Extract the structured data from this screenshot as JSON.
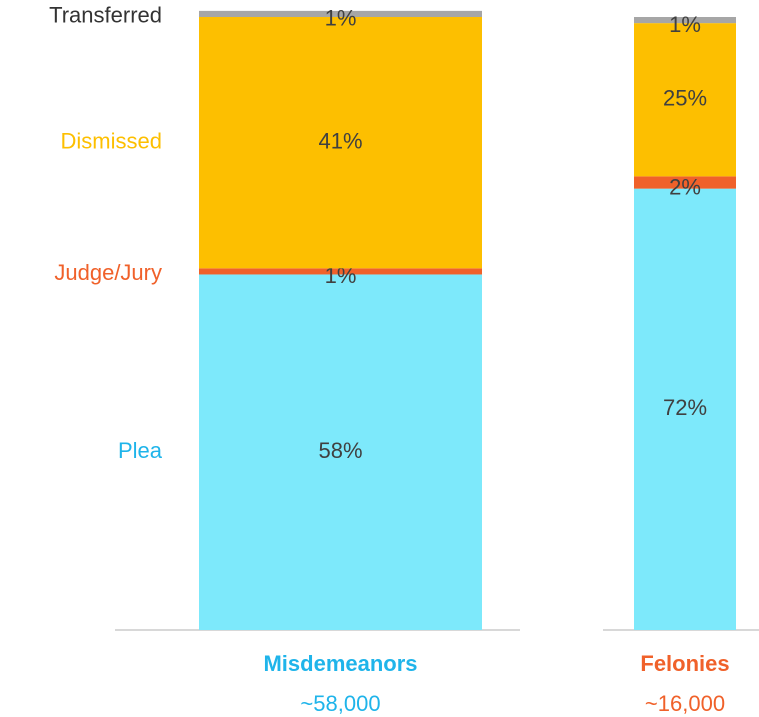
{
  "chart_data": {
    "type": "stacked_bar",
    "categories": [
      "Misdemeanors",
      "Felonies"
    ],
    "category_counts": [
      "~58,000",
      "~16,000"
    ],
    "category_colors": [
      "#1fb4ea",
      "#f0612a"
    ],
    "ylim": [
      0,
      100
    ],
    "series": [
      {
        "name": "Plea",
        "color": "#7de9fb",
        "label_color": "#1fb4ea",
        "values": [
          58,
          72
        ],
        "value_labels": [
          "58%",
          "72%"
        ]
      },
      {
        "name": "Judge/Jury",
        "color": "#f0612a",
        "label_color": "#f0612a",
        "values": [
          1,
          2
        ],
        "value_labels": [
          "1%",
          "2%"
        ]
      },
      {
        "name": "Dismissed",
        "color": "#fdbf00",
        "label_color": "#fdbf00",
        "values": [
          41,
          25
        ],
        "value_labels": [
          "41%",
          "25%"
        ]
      },
      {
        "name": "Transferred",
        "color": "#a6a6a6",
        "label_color": "#333333",
        "values": [
          1,
          1
        ],
        "value_labels": [
          "1%",
          "1%"
        ]
      }
    ]
  }
}
